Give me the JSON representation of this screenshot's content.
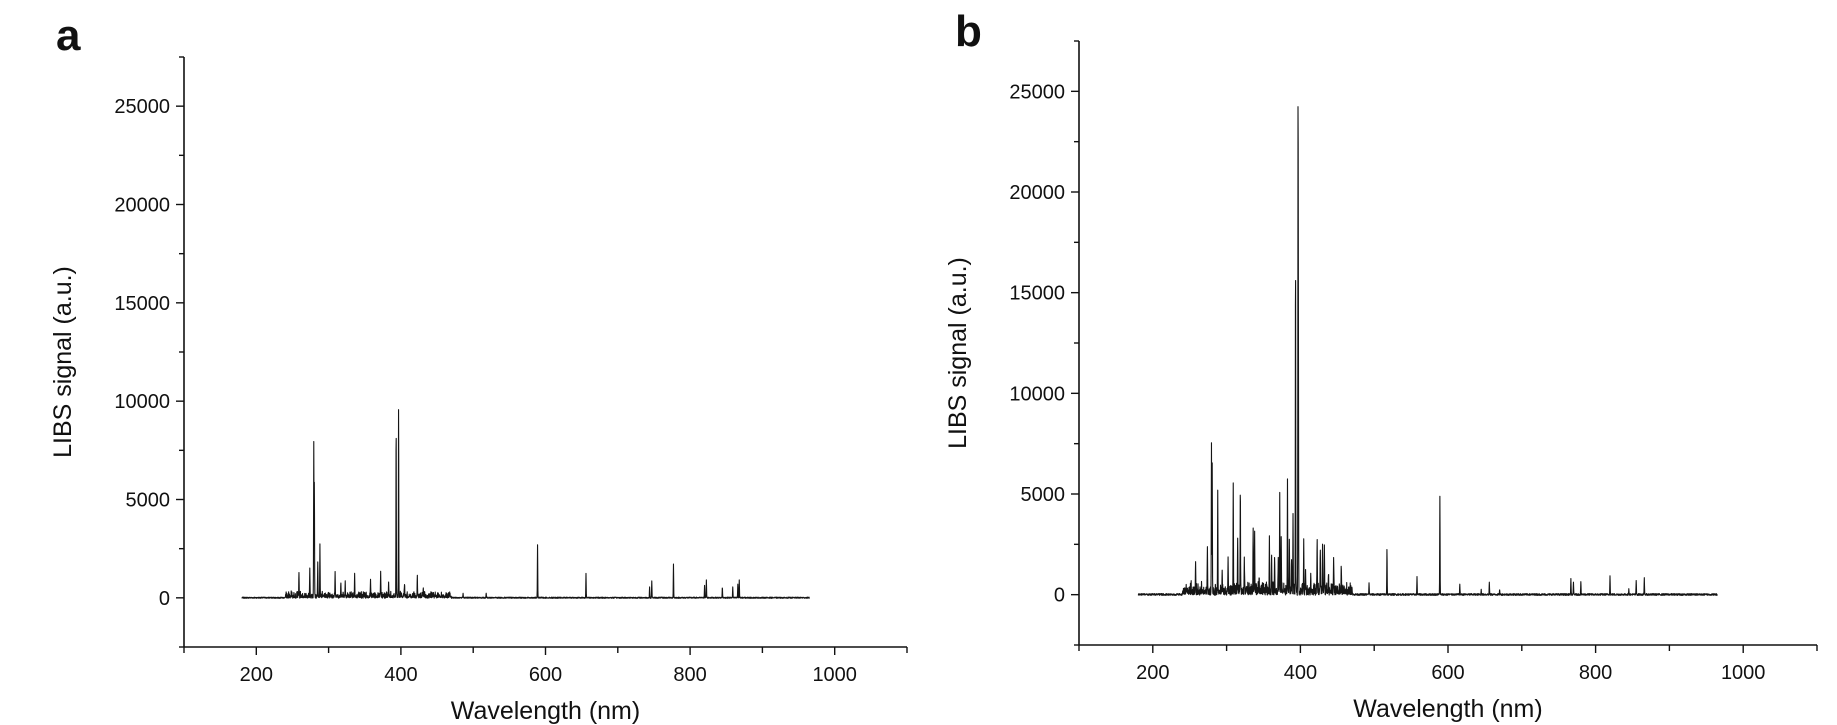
{
  "chart_data": [
    {
      "type": "line",
      "panel_label": "a",
      "xlabel": "Wavelength (nm)",
      "ylabel": "LIBS signal (a.u.)",
      "xlim": [
        100,
        1100
      ],
      "ylim": [
        -2500,
        27500
      ],
      "x_ticks": [
        200,
        400,
        600,
        800,
        1000
      ],
      "x_tick_labels": [
        "200",
        "400",
        "600",
        "800",
        "1000"
      ],
      "y_ticks": [
        0,
        5000,
        10000,
        15000,
        20000,
        25000
      ],
      "y_tick_labels": [
        "0",
        "5000",
        "10000",
        "15000",
        "20000",
        "25000"
      ],
      "grid": false,
      "x_range": [
        180,
        965
      ],
      "baseline_noise": 60,
      "peaks": [
        [
          259,
          1200
        ],
        [
          274,
          1500
        ],
        [
          279.5,
          7850
        ],
        [
          280.3,
          5800
        ],
        [
          285,
          1800
        ],
        [
          288,
          2700
        ],
        [
          309,
          1300
        ],
        [
          317,
          600
        ],
        [
          323,
          700
        ],
        [
          336,
          1050
        ],
        [
          358,
          900
        ],
        [
          372,
          1200
        ],
        [
          383,
          800
        ],
        [
          393.4,
          8750
        ],
        [
          396.8,
          9700
        ],
        [
          405,
          650
        ],
        [
          422.7,
          1050
        ],
        [
          431,
          450
        ],
        [
          486,
          250
        ],
        [
          518,
          250
        ],
        [
          589,
          2700
        ],
        [
          656,
          1250
        ],
        [
          744,
          550
        ],
        [
          747,
          850
        ],
        [
          777,
          1700
        ],
        [
          820,
          650
        ],
        [
          822.5,
          900
        ],
        [
          844.6,
          550
        ],
        [
          859,
          550
        ],
        [
          866,
          700
        ],
        [
          868,
          900
        ]
      ]
    },
    {
      "type": "line",
      "panel_label": "b",
      "xlabel": "Wavelength (nm)",
      "ylabel": "LIBS signal (a.u.)",
      "xlim": [
        100,
        1100
      ],
      "ylim": [
        -2500,
        27500
      ],
      "x_ticks": [
        200,
        400,
        600,
        800,
        1000
      ],
      "x_tick_labels": [
        "200",
        "400",
        "600",
        "800",
        "1000"
      ],
      "y_ticks": [
        0,
        5000,
        10000,
        15000,
        20000,
        25000
      ],
      "y_tick_labels": [
        "0",
        "5000",
        "10000",
        "15000",
        "20000",
        "25000"
      ],
      "grid": false,
      "x_range": [
        180,
        965
      ],
      "baseline_noise": 90,
      "peaks": [
        [
          258,
          1600
        ],
        [
          274,
          2300
        ],
        [
          279.5,
          7300
        ],
        [
          280.5,
          6400
        ],
        [
          288,
          4900
        ],
        [
          294,
          900
        ],
        [
          302,
          1800
        ],
        [
          309,
          5200
        ],
        [
          315,
          2800
        ],
        [
          318.6,
          5300
        ],
        [
          324,
          1700
        ],
        [
          336,
          3300
        ],
        [
          338,
          2700
        ],
        [
          344,
          800
        ],
        [
          358,
          2900
        ],
        [
          361,
          1900
        ],
        [
          365,
          1800
        ],
        [
          370,
          1800
        ],
        [
          372,
          4800
        ],
        [
          374,
          2800
        ],
        [
          382.5,
          5700
        ],
        [
          385,
          2500
        ],
        [
          388,
          1700
        ],
        [
          390,
          3700
        ],
        [
          393.4,
          16500
        ],
        [
          396.8,
          23300
        ],
        [
          397.3,
          11400
        ],
        [
          404.5,
          2700
        ],
        [
          407,
          1200
        ],
        [
          414,
          1000
        ],
        [
          422.7,
          2800
        ],
        [
          427,
          2000
        ],
        [
          430,
          2500
        ],
        [
          432.5,
          2300
        ],
        [
          438,
          900
        ],
        [
          445,
          1800
        ],
        [
          455.4,
          1250
        ],
        [
          470,
          300
        ],
        [
          493,
          600
        ],
        [
          517.3,
          2300
        ],
        [
          558,
          850
        ],
        [
          589,
          4900
        ],
        [
          616,
          500
        ],
        [
          645,
          250
        ],
        [
          656,
          600
        ],
        [
          670,
          250
        ],
        [
          766.5,
          750
        ],
        [
          770,
          600
        ],
        [
          780,
          650
        ],
        [
          819.5,
          950
        ],
        [
          845,
          300
        ],
        [
          855,
          700
        ],
        [
          866,
          800
        ]
      ]
    }
  ]
}
